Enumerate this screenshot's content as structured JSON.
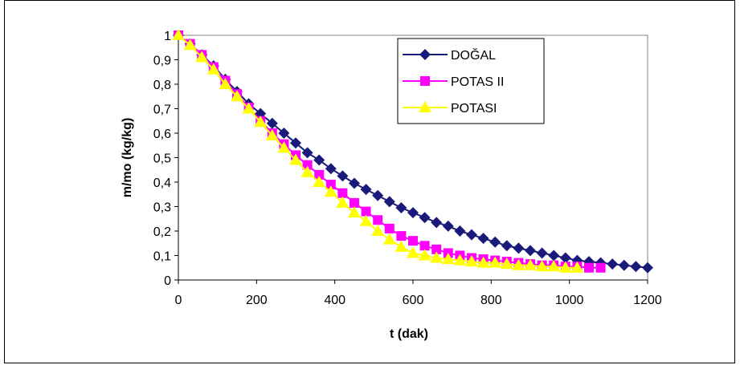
{
  "chart_data": {
    "type": "line",
    "xlabel": "t (dak)",
    "ylabel": "m/mo (kg/kg)",
    "xlim": [
      0,
      1200
    ],
    "ylim": [
      0,
      1
    ],
    "x_ticks": [
      "0",
      "200",
      "400",
      "600",
      "800",
      "1000",
      "1200"
    ],
    "y_ticks": [
      "0",
      "0,1",
      "0,2",
      "0,3",
      "0,4",
      "0,5",
      "0,6",
      "0,7",
      "0,8",
      "0,9",
      "1"
    ],
    "grid": false,
    "legend_position": "top-right",
    "series": [
      {
        "name": "DOĞAL",
        "color": "#1a1a7a",
        "marker": "diamond",
        "x": [
          0,
          30,
          60,
          90,
          120,
          150,
          180,
          210,
          240,
          270,
          300,
          330,
          360,
          390,
          420,
          450,
          480,
          510,
          540,
          570,
          600,
          630,
          660,
          690,
          720,
          750,
          780,
          810,
          840,
          870,
          900,
          930,
          960,
          990,
          1020,
          1050,
          1080,
          1110,
          1140,
          1170,
          1200
        ],
        "y": [
          1,
          0.965,
          0.92,
          0.875,
          0.82,
          0.77,
          0.72,
          0.68,
          0.64,
          0.6,
          0.56,
          0.52,
          0.49,
          0.455,
          0.425,
          0.395,
          0.37,
          0.345,
          0.32,
          0.295,
          0.275,
          0.255,
          0.235,
          0.22,
          0.2,
          0.185,
          0.17,
          0.155,
          0.14,
          0.13,
          0.12,
          0.11,
          0.1,
          0.09,
          0.08,
          0.075,
          0.07,
          0.065,
          0.06,
          0.055,
          0.05
        ]
      },
      {
        "name": "POTAS II",
        "color": "#ff00ff",
        "marker": "square",
        "x": [
          0,
          30,
          60,
          90,
          120,
          150,
          180,
          210,
          240,
          270,
          300,
          330,
          360,
          390,
          420,
          450,
          480,
          510,
          540,
          570,
          600,
          630,
          660,
          690,
          720,
          750,
          780,
          810,
          840,
          870,
          900,
          930,
          960,
          990,
          1020,
          1050,
          1080
        ],
        "y": [
          1,
          0.965,
          0.92,
          0.87,
          0.815,
          0.76,
          0.705,
          0.65,
          0.6,
          0.555,
          0.51,
          0.47,
          0.43,
          0.39,
          0.355,
          0.315,
          0.28,
          0.245,
          0.21,
          0.18,
          0.16,
          0.14,
          0.125,
          0.11,
          0.1,
          0.09,
          0.085,
          0.08,
          0.075,
          0.07,
          0.065,
          0.06,
          0.06,
          0.055,
          0.055,
          0.05,
          0.05
        ]
      },
      {
        "name": "POTASI",
        "color": "#ffff00",
        "marker": "triangle",
        "x": [
          0,
          30,
          60,
          90,
          120,
          150,
          180,
          210,
          240,
          270,
          300,
          330,
          360,
          390,
          420,
          450,
          480,
          510,
          540,
          570,
          600,
          630,
          660,
          690,
          720,
          750,
          780,
          810,
          840,
          870,
          900,
          930,
          960,
          990,
          1020
        ],
        "y": [
          1,
          0.96,
          0.91,
          0.86,
          0.8,
          0.75,
          0.7,
          0.645,
          0.59,
          0.54,
          0.49,
          0.44,
          0.4,
          0.36,
          0.315,
          0.275,
          0.24,
          0.2,
          0.165,
          0.135,
          0.11,
          0.1,
          0.09,
          0.085,
          0.08,
          0.075,
          0.07,
          0.07,
          0.065,
          0.06,
          0.06,
          0.055,
          0.055,
          0.05,
          0.05
        ]
      }
    ]
  }
}
